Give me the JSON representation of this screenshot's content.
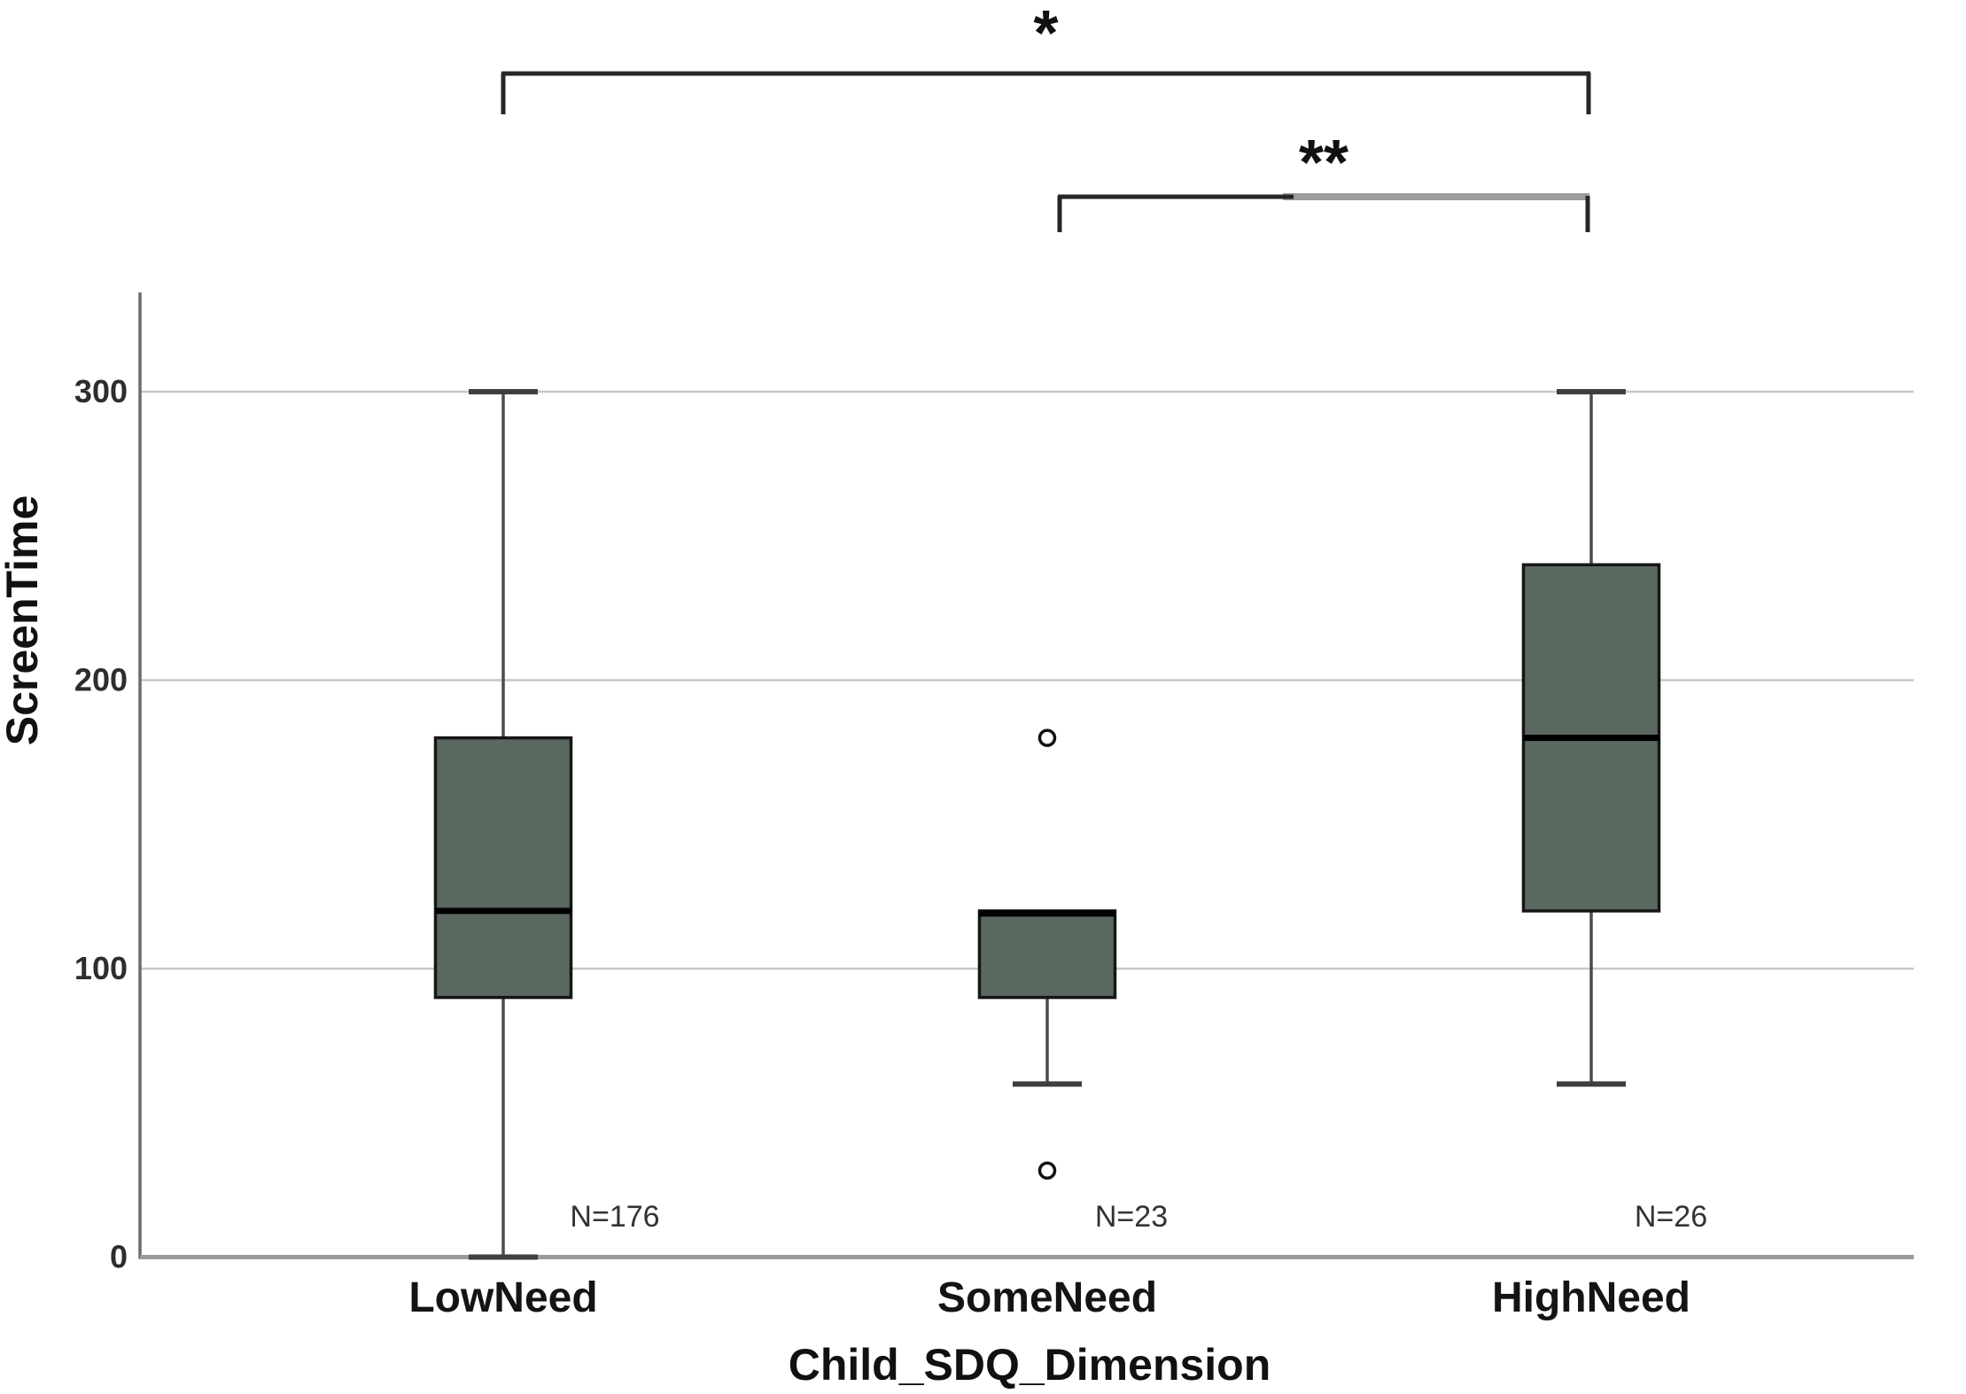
{
  "chart_data": {
    "type": "boxplot",
    "title": "",
    "xlabel": "Child_SDQ_Dimension",
    "ylabel": "ScreenTime",
    "ylim": [
      0,
      330
    ],
    "yticks": [
      0,
      100,
      200,
      300
    ],
    "grid": "horizontal-gridlines-at-100-200-300",
    "legend": "none",
    "categories": [
      "LowNeed",
      "SomeNeed",
      "HighNeed"
    ],
    "series": [
      {
        "category": "LowNeed",
        "n": 176,
        "n_label": "N=176",
        "whisker_low": 0,
        "q1": 90,
        "median": 120,
        "q3": 180,
        "whisker_high": 300,
        "median_position": "interior",
        "outliers": []
      },
      {
        "category": "SomeNeed",
        "n": 23,
        "n_label": "N=23",
        "whisker_low": 60,
        "q1": 90,
        "median": 120,
        "q3": 120,
        "whisker_high": 120,
        "median_position": "top-edge",
        "outliers": [
          180,
          30
        ]
      },
      {
        "category": "HighNeed",
        "n": 26,
        "n_label": "N=26",
        "whisker_low": 60,
        "q1": 120,
        "median": 180,
        "q3": 240,
        "whisker_high": 300,
        "median_position": "interior",
        "outliers": []
      }
    ],
    "significance_brackets": [
      {
        "label": "*",
        "from": "LowNeed",
        "to": "HighNeed"
      },
      {
        "label": "**",
        "from": "SomeNeed",
        "to": "HighNeed"
      }
    ],
    "colors": {
      "background": "#ffffff",
      "box_fill": "#5b685f",
      "box_border": "#161616",
      "median_line": "#000000",
      "whisker": "#4c4c4c",
      "whisker_cap": "#3f3f3f",
      "gridline": "#c7c7c7",
      "x_axis": "#9a9a9a",
      "y_axis": "#6b6b6b",
      "tick_text": "#2d2d2d",
      "category_text": "#141414",
      "n_text": "#333333",
      "title_text": "#111111",
      "bracket_dark": "#262626",
      "bracket_grey": "#9d9d9d",
      "outlier_stroke": "#111111",
      "outlier_fill": "#ffffff"
    }
  }
}
